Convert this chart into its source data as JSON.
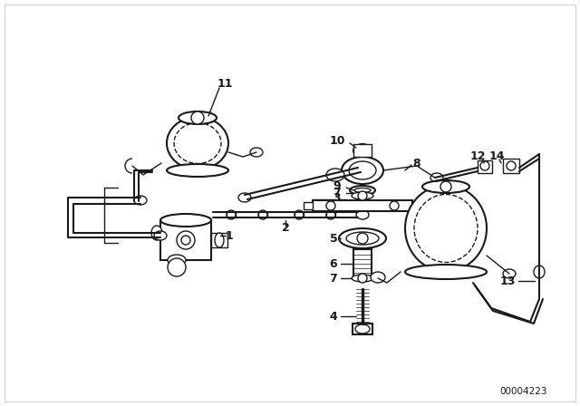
{
  "background_color": "#ffffff",
  "diagram_color": "#1a1a1a",
  "watermark": "00004223",
  "fig_width": 6.4,
  "fig_height": 4.48,
  "dpi": 100,
  "border_color": "#bbbbbb"
}
